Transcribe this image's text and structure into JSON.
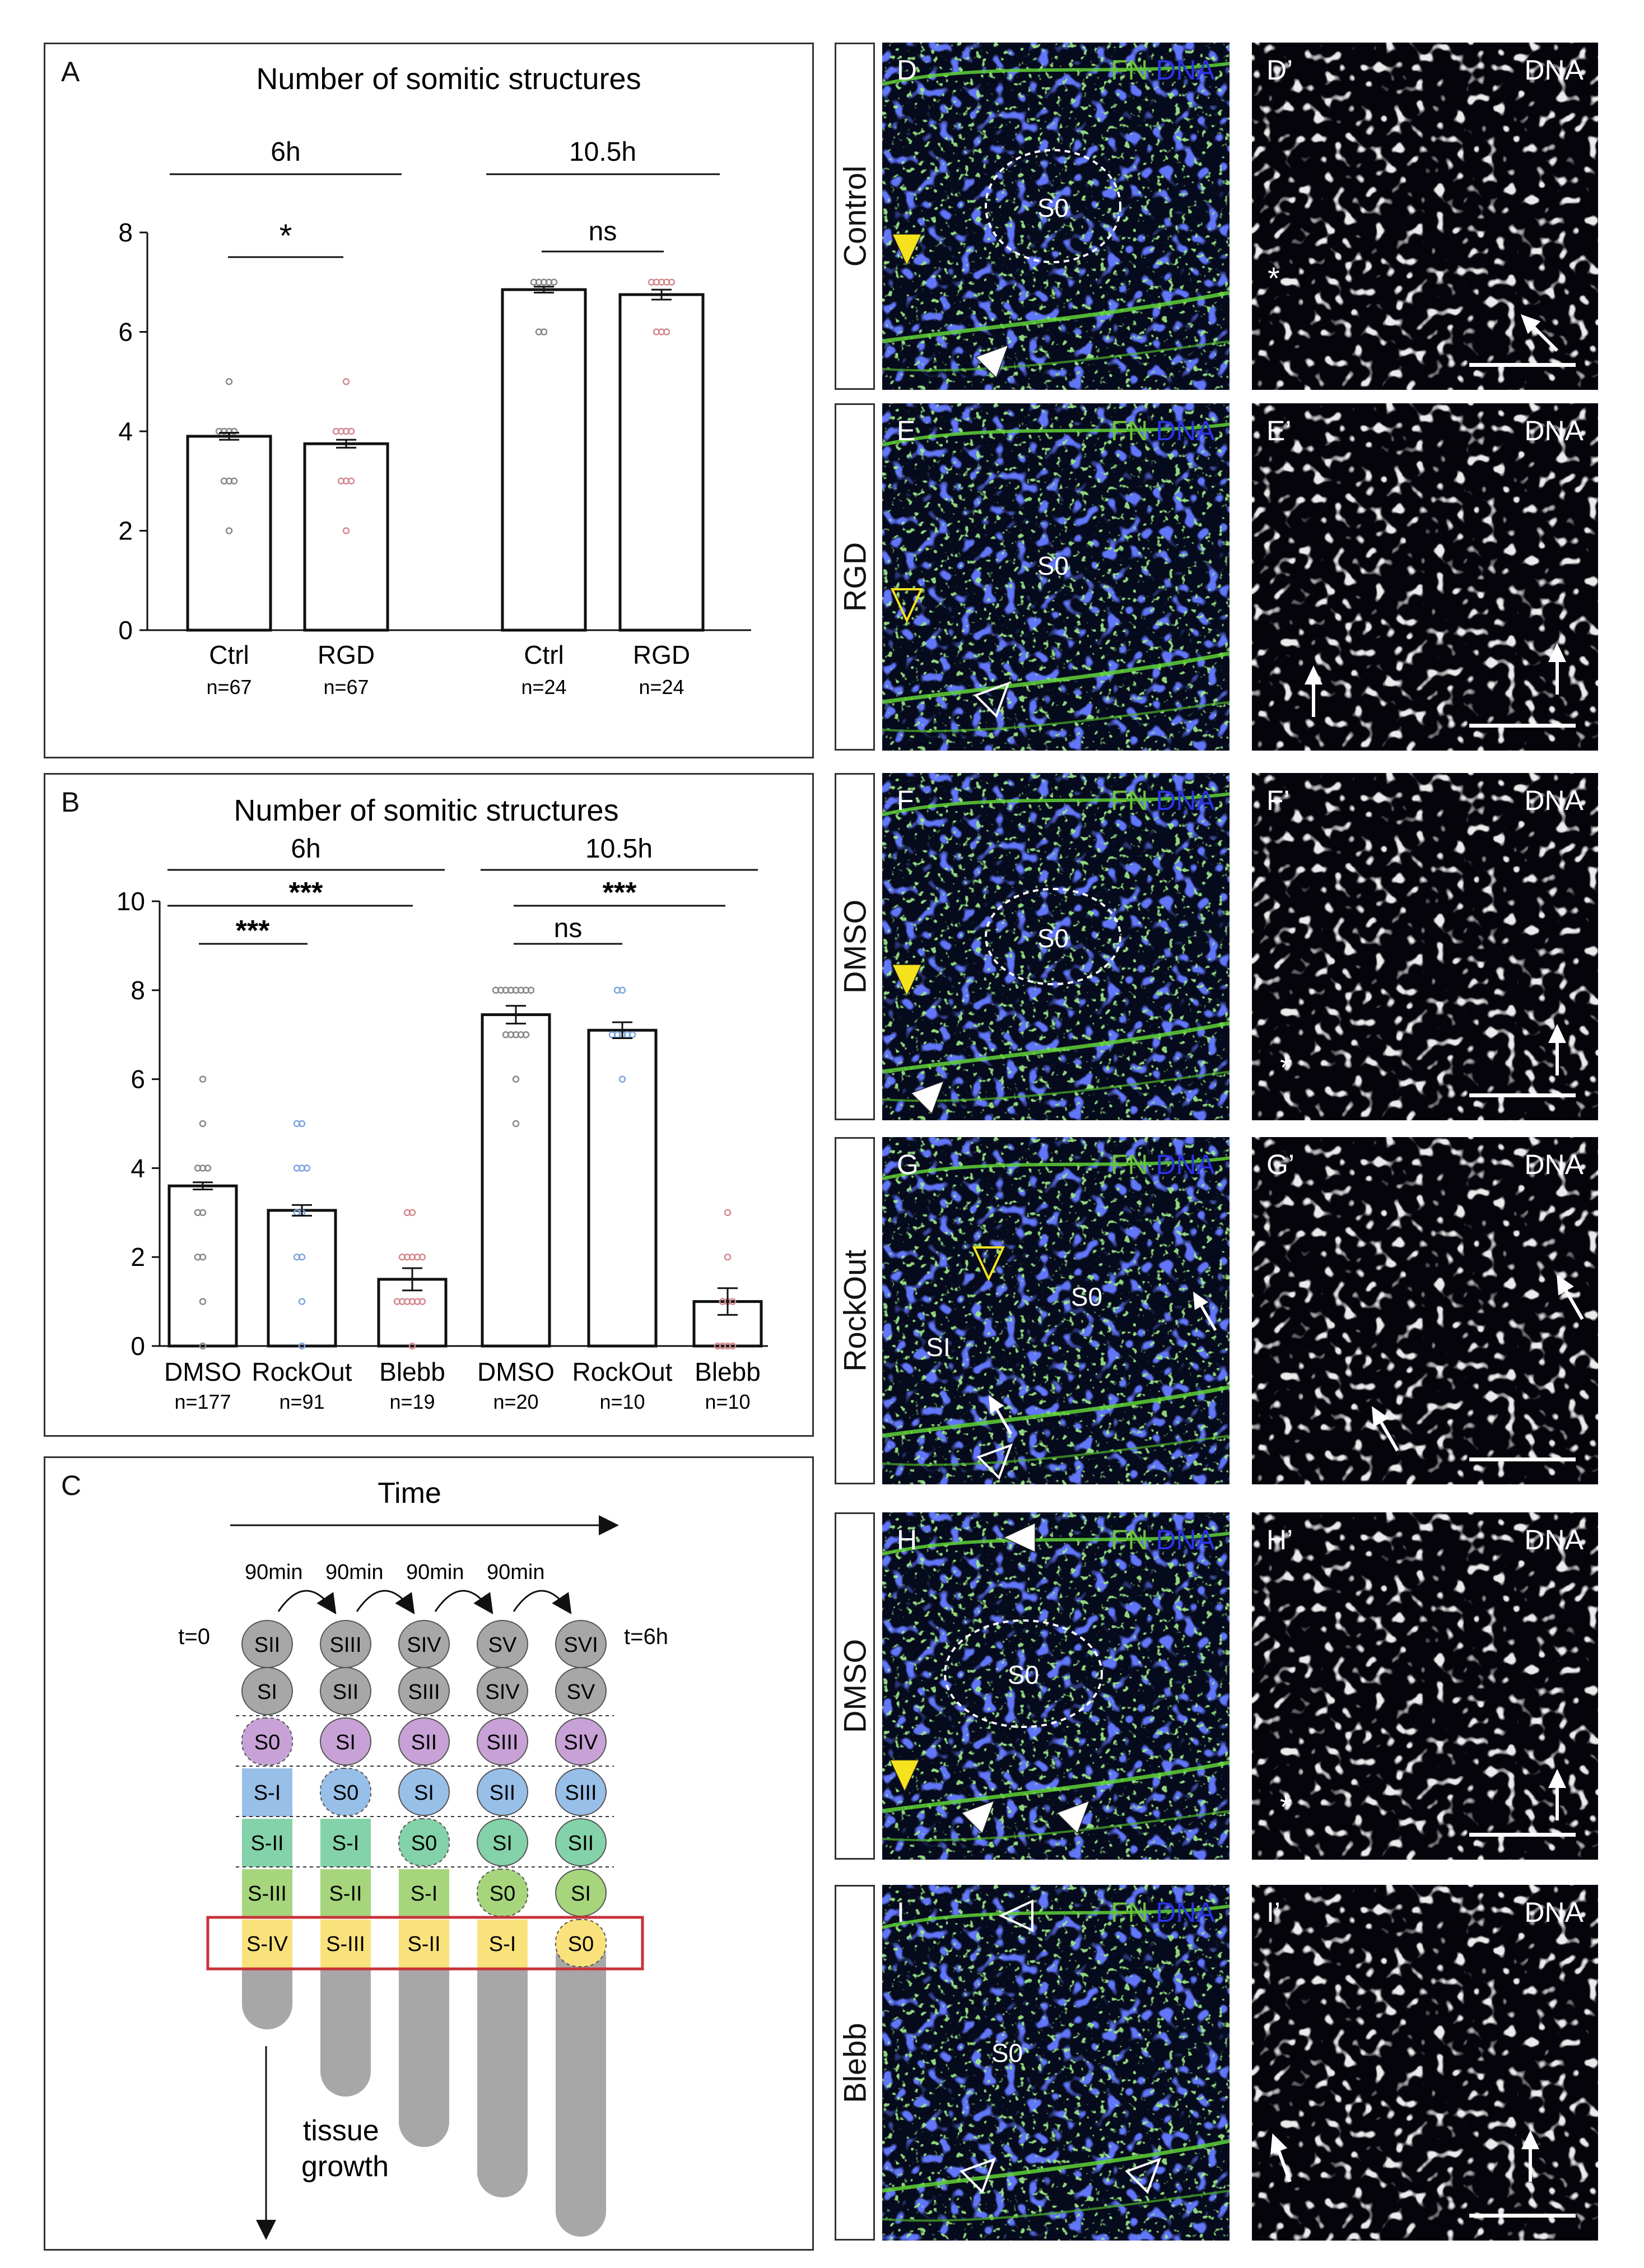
{
  "panelA": {
    "letter": "A",
    "title": "Number of somitic structures",
    "groups": [
      "6h",
      "10.5h"
    ],
    "sig": [
      "*",
      "ns"
    ],
    "chart_data": {
      "type": "bar",
      "title": "Number of somitic structures",
      "categories": [
        "Ctrl",
        "RGD",
        "Ctrl",
        "RGD"
      ],
      "group_labels": [
        "6h",
        "6h",
        "10.5h",
        "10.5h"
      ],
      "n_labels": [
        "n=67",
        "n=67",
        "n=24",
        "n=24"
      ],
      "values": [
        3.9,
        3.75,
        6.85,
        6.75
      ],
      "errors": [
        0.07,
        0.08,
        0.06,
        0.1
      ],
      "points": [
        [
          5,
          4,
          4,
          4,
          4,
          3,
          3,
          3,
          2
        ],
        [
          5,
          4,
          4,
          4,
          4,
          3,
          3,
          3,
          2
        ],
        [
          7,
          7,
          7,
          7,
          7,
          6,
          6
        ],
        [
          7,
          7,
          7,
          7,
          7,
          6,
          6,
          6
        ]
      ],
      "point_colors": [
        "#888888",
        "#d4898f",
        "#888888",
        "#d4898f"
      ],
      "ylim": [
        0,
        8
      ],
      "yticks": [
        0,
        2,
        4,
        6,
        8
      ],
      "significance": [
        {
          "label": "*"
        },
        {
          "label": "ns"
        }
      ]
    }
  },
  "panelB": {
    "letter": "B",
    "title": "Number of somitic structures",
    "groups": [
      "6h",
      "10.5h"
    ],
    "sig": [
      "***",
      "***",
      "ns",
      "***"
    ],
    "chart_data": {
      "type": "bar",
      "title": "Number of somitic structures",
      "categories": [
        "DMSO",
        "RockOut",
        "Blebb",
        "DMSO",
        "RockOut",
        "Blebb"
      ],
      "group_labels": [
        "6h",
        "6h",
        "6h",
        "10.5h",
        "10.5h",
        "10.5h"
      ],
      "n_labels": [
        "n=177",
        "n=91",
        "n=19",
        "n=20",
        "n=10",
        "n=10"
      ],
      "values": [
        3.6,
        3.05,
        1.5,
        7.45,
        7.1,
        1.0
      ],
      "errors": [
        0.08,
        0.12,
        0.25,
        0.2,
        0.18,
        0.3
      ],
      "points": [
        [
          6,
          5,
          4,
          4,
          4,
          3,
          3,
          2,
          2,
          1,
          0
        ],
        [
          5,
          5,
          4,
          4,
          4,
          3,
          3,
          2,
          2,
          1,
          0
        ],
        [
          3,
          3,
          2,
          2,
          2,
          2,
          2,
          1,
          1,
          1,
          1,
          1,
          1,
          0
        ],
        [
          8,
          8,
          8,
          8,
          8,
          8,
          8,
          8,
          7,
          7,
          7,
          7,
          7,
          6,
          5
        ],
        [
          8,
          8,
          7,
          7,
          7,
          7,
          7,
          6
        ],
        [
          3,
          2,
          1,
          1,
          1,
          0,
          0,
          0,
          0
        ]
      ],
      "point_colors": [
        "#888888",
        "#7ea6dd",
        "#d4898f",
        "#888888",
        "#7ea6dd",
        "#d4898f"
      ],
      "ylim": [
        0,
        10
      ],
      "yticks": [
        0,
        2,
        4,
        6,
        8,
        10
      ],
      "significance": [
        {
          "label": "***"
        },
        {
          "label": "***"
        },
        {
          "label": "ns"
        },
        {
          "label": "***"
        }
      ]
    }
  },
  "panelC": {
    "letter": "C",
    "time_label": "Time",
    "interval_labels": [
      "90min",
      "90min",
      "90min",
      "90min"
    ],
    "t_start": "t=0",
    "t_end": "t=6h",
    "growth_label": "tissue\ngrowth",
    "columns": [
      [
        "SII",
        "SI",
        "S0",
        "S-I",
        "S-II",
        "S-III",
        "S-IV"
      ],
      [
        "SIII",
        "SII",
        "SI",
        "S0",
        "S-I",
        "S-II",
        "S-III"
      ],
      [
        "SIV",
        "SIII",
        "SII",
        "SI",
        "S0",
        "S-I",
        "S-II"
      ],
      [
        "SV",
        "SIV",
        "SIII",
        "SII",
        "SI",
        "S0",
        "S-I"
      ],
      [
        "SVI",
        "SV",
        "SIV",
        "SIII",
        "SII",
        "SI",
        "S0"
      ]
    ],
    "colors": {
      "gray": "#a7a7a7",
      "purple": "#c8a2d6",
      "blue": "#98bfe8",
      "teal": "#84d2a9",
      "green": "#a6d57c",
      "yellow": "#f9e27c",
      "box": "#c8323a"
    }
  },
  "rows": [
    {
      "row_label": "Control",
      "left_letter": "D",
      "right_letter": "D’",
      "left_channels": {
        "fn": "FN",
        "dna": "DNA"
      },
      "right_channel": "DNA",
      "region_labels": [
        "S0"
      ]
    },
    {
      "row_label": "RGD",
      "left_letter": "E",
      "right_letter": "E’",
      "left_channels": {
        "fn": "FN",
        "dna": "DNA"
      },
      "right_channel": "DNA",
      "region_labels": [
        "S0"
      ]
    },
    {
      "row_label": "DMSO",
      "left_letter": "F",
      "right_letter": "F’",
      "left_channels": {
        "fn": "FN",
        "dna": "DNA"
      },
      "right_channel": "DNA",
      "region_labels": [
        "S0"
      ]
    },
    {
      "row_label": "RockOut",
      "left_letter": "G",
      "right_letter": "G’",
      "left_channels": {
        "fn": "FN",
        "dna": "DNA"
      },
      "right_channel": "DNA",
      "region_labels": [
        "SI",
        "S0"
      ]
    },
    {
      "row_label": "DMSO",
      "left_letter": "H",
      "right_letter": "H’",
      "left_channels": {
        "fn": "FN",
        "dna": "DNA"
      },
      "right_channel": "DNA",
      "region_labels": [
        "S0"
      ]
    },
    {
      "row_label": "Blebb",
      "left_letter": "I",
      "right_letter": "I’",
      "left_channels": {
        "fn": "FN",
        "dna": "DNA"
      },
      "right_channel": "DNA",
      "region_labels": [
        "S0"
      ]
    }
  ],
  "asterisk": "*"
}
